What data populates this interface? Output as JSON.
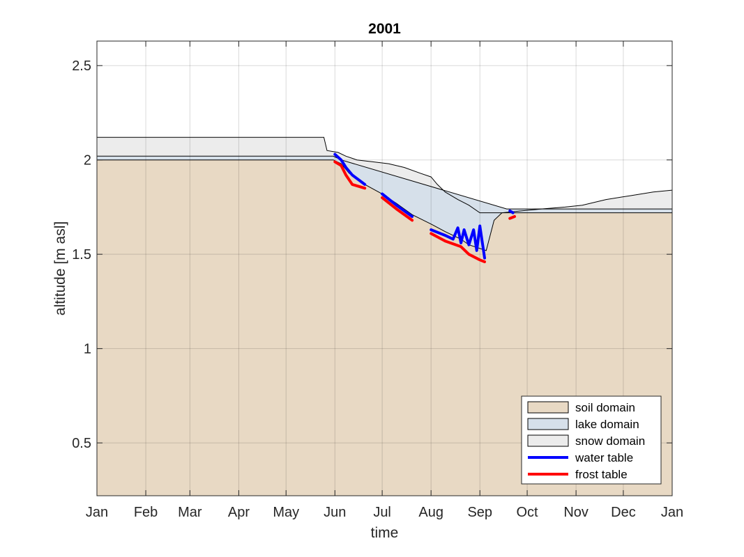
{
  "chart_data": {
    "type": "area",
    "title": "2001",
    "xlabel": "time",
    "ylabel": "altitude [m asl]",
    "xlim": [
      "2001-01-01",
      "2002-01-01"
    ],
    "ylim": [
      0.22,
      2.63
    ],
    "grid": true,
    "legend_position": "bottom-right",
    "x_tick_labels": [
      "Jan",
      "Feb",
      "Mar",
      "Apr",
      "May",
      "Jun",
      "Jul",
      "Aug",
      "Sep",
      "Oct",
      "Nov",
      "Dec",
      "Jan"
    ],
    "x_ticks": [
      "2001-01-01",
      "2001-02-01",
      "2001-03-01",
      "2001-04-01",
      "2001-05-01",
      "2001-06-01",
      "2001-07-01",
      "2001-08-01",
      "2001-09-01",
      "2001-10-01",
      "2001-11-01",
      "2001-12-01",
      "2002-01-01"
    ],
    "y_ticks": [
      0.5,
      1,
      1.5,
      2,
      2.5
    ],
    "y_tick_labels": [
      "0.5",
      "1",
      "1.5",
      "2",
      "2.5"
    ],
    "legend": [
      {
        "label": "soil domain",
        "kind": "patch",
        "color": "#e8d9c4"
      },
      {
        "label": "lake domain",
        "kind": "patch",
        "color": "#d6e0ea"
      },
      {
        "label": "snow domain",
        "kind": "patch",
        "color": "#ececec"
      },
      {
        "label": "water table",
        "kind": "line",
        "color": "#0000ff"
      },
      {
        "label": "frost table",
        "kind": "line",
        "color": "#ff0000"
      }
    ],
    "series": [
      {
        "name": "soil domain",
        "color": "#e8d9c4",
        "points": [
          [
            "2001-01-01",
            2.0
          ],
          [
            "2001-05-31",
            2.0
          ],
          [
            "2001-06-05",
            1.98
          ],
          [
            "2001-06-10",
            1.93
          ],
          [
            "2001-06-20",
            1.87
          ],
          [
            "2001-07-01",
            1.82
          ],
          [
            "2001-07-10",
            1.77
          ],
          [
            "2001-07-20",
            1.71
          ],
          [
            "2001-08-01",
            1.66
          ],
          [
            "2001-08-10",
            1.62
          ],
          [
            "2001-08-20",
            1.58
          ],
          [
            "2001-08-25",
            1.55
          ],
          [
            "2001-09-05",
            1.52
          ],
          [
            "2001-09-10",
            1.68
          ],
          [
            "2001-09-15",
            1.72
          ],
          [
            "2002-01-01",
            1.72
          ]
        ]
      },
      {
        "name": "lake domain",
        "color": "#d6e0ea",
        "points": [
          [
            "2001-01-01",
            2.02
          ],
          [
            "2001-05-31",
            2.02
          ],
          [
            "2001-06-05",
            2.0
          ],
          [
            "2001-09-18",
            1.74
          ],
          [
            "2001-10-15",
            1.74
          ],
          [
            "2002-01-01",
            1.74
          ]
        ]
      },
      {
        "name": "snow domain",
        "color": "#ececec",
        "points": [
          [
            "2001-01-01",
            2.12
          ],
          [
            "2001-02-01",
            2.12
          ],
          [
            "2001-04-01",
            2.12
          ],
          [
            "2001-05-25",
            2.12
          ],
          [
            "2001-05-27",
            2.05
          ],
          [
            "2001-06-03",
            2.04
          ],
          [
            "2001-06-08",
            2.02
          ],
          [
            "2001-06-15",
            2.0
          ],
          [
            "2001-06-25",
            1.99
          ],
          [
            "2001-07-05",
            1.98
          ],
          [
            "2001-07-15",
            1.96
          ],
          [
            "2001-07-25",
            1.93
          ],
          [
            "2001-08-01",
            1.91
          ],
          [
            "2001-08-05",
            1.87
          ],
          [
            "2001-08-10",
            1.83
          ],
          [
            "2001-08-18",
            1.79
          ],
          [
            "2001-08-25",
            1.76
          ],
          [
            "2001-09-01",
            1.72
          ],
          [
            "2001-09-15",
            1.72
          ],
          [
            "2001-10-10",
            1.74
          ],
          [
            "2001-10-25",
            1.75
          ],
          [
            "2001-11-05",
            1.76
          ],
          [
            "2001-11-20",
            1.79
          ],
          [
            "2001-12-05",
            1.81
          ],
          [
            "2001-12-20",
            1.83
          ],
          [
            "2002-01-01",
            1.84
          ]
        ]
      },
      {
        "name": "water table",
        "color": "#0000ff",
        "points": [
          [
            "2001-06-01",
            2.03
          ],
          [
            "2001-06-05",
            2.0
          ],
          [
            "2001-06-08",
            1.96
          ],
          [
            "2001-06-12",
            1.92
          ],
          [
            "2001-06-20",
            1.87
          ],
          [
            "2001-07-01",
            1.82
          ],
          [
            "2001-07-10",
            1.76
          ],
          [
            "2001-07-20",
            1.7
          ],
          [
            "2001-08-01",
            1.63
          ],
          [
            "2001-08-10",
            1.6
          ],
          [
            "2001-08-15",
            1.58
          ],
          [
            "2001-08-18",
            1.64
          ],
          [
            "2001-08-20",
            1.56
          ],
          [
            "2001-08-22",
            1.63
          ],
          [
            "2001-08-25",
            1.55
          ],
          [
            "2001-08-28",
            1.63
          ],
          [
            "2001-08-30",
            1.52
          ],
          [
            "2001-09-01",
            1.65
          ],
          [
            "2001-09-04",
            1.48
          ],
          [
            "2001-09-20",
            1.73
          ],
          [
            "2001-09-22",
            1.72
          ]
        ]
      },
      {
        "name": "frost table",
        "color": "#ff0000",
        "points": [
          [
            "2001-06-01",
            1.99
          ],
          [
            "2001-06-05",
            1.97
          ],
          [
            "2001-06-08",
            1.92
          ],
          [
            "2001-06-12",
            1.87
          ],
          [
            "2001-06-20",
            1.85
          ],
          [
            "2001-07-01",
            1.8
          ],
          [
            "2001-07-10",
            1.74
          ],
          [
            "2001-07-20",
            1.68
          ],
          [
            "2001-08-01",
            1.61
          ],
          [
            "2001-08-10",
            1.57
          ],
          [
            "2001-08-20",
            1.54
          ],
          [
            "2001-08-25",
            1.5
          ],
          [
            "2001-09-01",
            1.47
          ],
          [
            "2001-09-04",
            1.46
          ],
          [
            "2001-09-20",
            1.69
          ],
          [
            "2001-09-23",
            1.7
          ]
        ]
      }
    ]
  }
}
